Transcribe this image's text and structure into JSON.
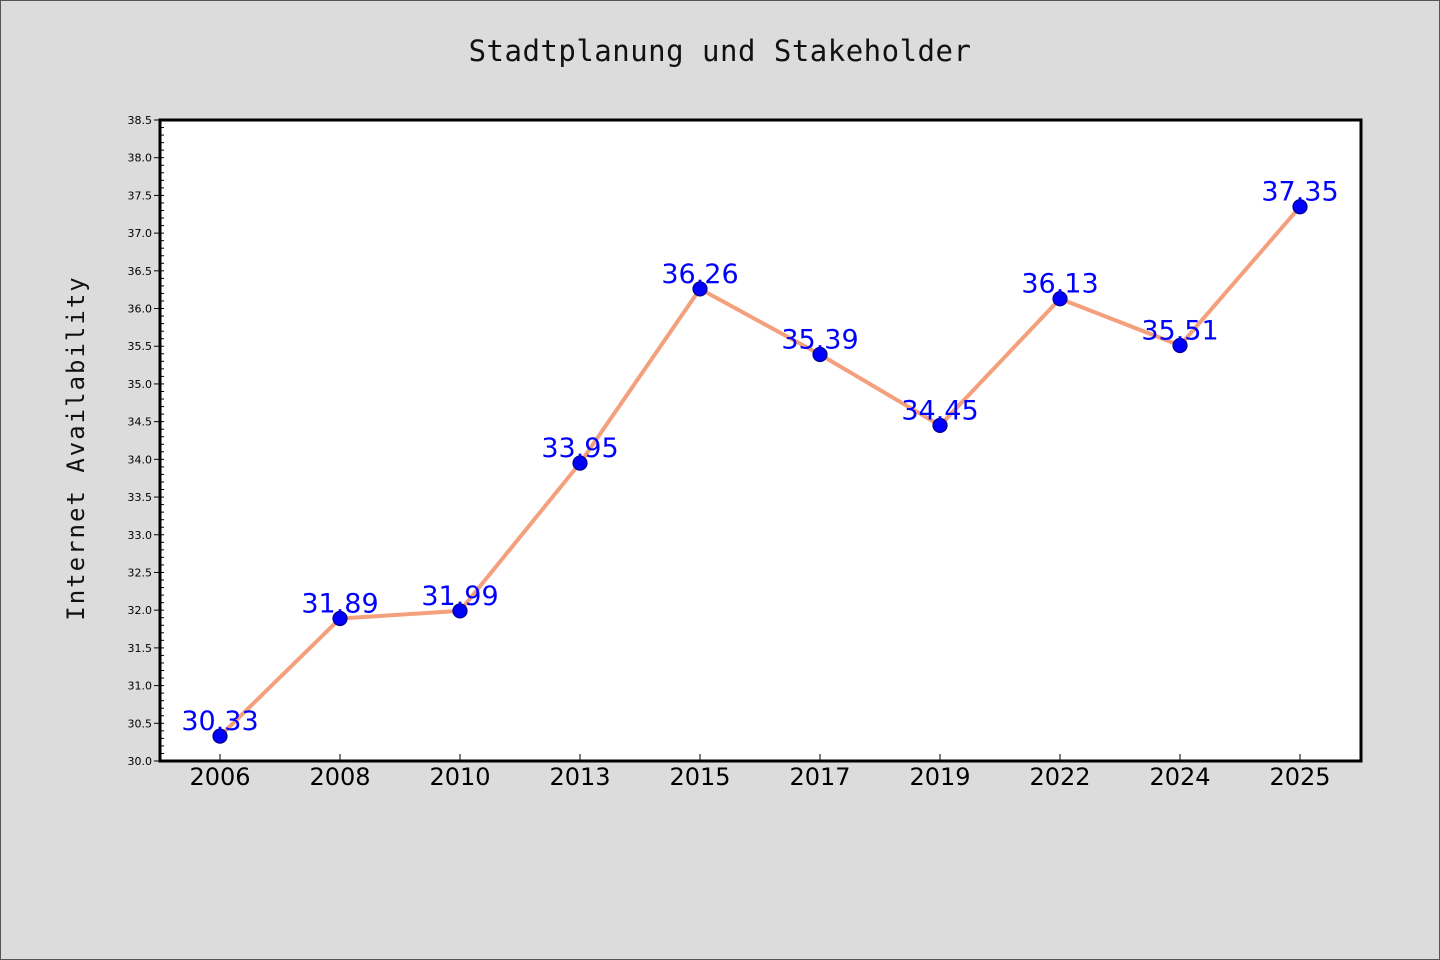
{
  "chart_data": {
    "type": "line",
    "title": "Stadtplanung und Stakeholder",
    "xlabel": "",
    "ylabel": "Internet Availability",
    "categories": [
      "2006",
      "2008",
      "2010",
      "2013",
      "2015",
      "2017",
      "2019",
      "2022",
      "2024",
      "2025"
    ],
    "series": [
      {
        "values": [
          30.33,
          31.89,
          31.99,
          33.95,
          36.26,
          35.39,
          34.45,
          36.13,
          35.51,
          37.35
        ],
        "data_labels": [
          "30.33",
          "31.89",
          "31.99",
          "33.95",
          "36.26",
          "35.39",
          "34.45",
          "36.13",
          "35.51",
          "37.35"
        ]
      }
    ],
    "ylim": [
      30.0,
      38.5
    ],
    "yticks": [
      "30.0",
      "30.5",
      "31.0",
      "31.5",
      "32.0",
      "32.5",
      "33.0",
      "33.5",
      "34.0",
      "34.5",
      "35.0",
      "35.5",
      "36.0",
      "36.5",
      "37.0",
      "37.5",
      "38.0",
      "38.5"
    ],
    "grid": false,
    "colors": {
      "line": "#f4a07d",
      "marker": "#0000ff",
      "marker_edge": "#00008b",
      "data_label": "#0000ff",
      "plot_background": "#ffffff",
      "figure_background": "#dcdcdc"
    }
  }
}
